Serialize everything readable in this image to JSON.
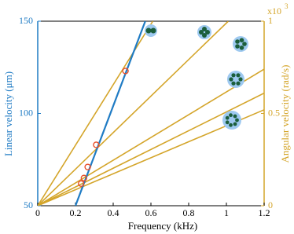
{
  "chart_data": {
    "type": "line",
    "x_label": "Frequency (kHz)",
    "y_label": "Linear velocity (μm)",
    "y2_label": "Angular velocity (rad/s)",
    "y2_multiplier": "x10",
    "y2_exponent": "3",
    "xlim": [
      0,
      1.2
    ],
    "xticks": [
      0,
      0.2,
      0.4,
      0.6,
      0.8,
      1,
      1.2
    ],
    "ylim": [
      50,
      150
    ],
    "yticks": [
      50,
      100,
      150
    ],
    "y2lim": [
      0,
      1
    ],
    "y2ticks": [
      0,
      0.5,
      1
    ],
    "y_color": "#1f7bc4",
    "y2_color": "#d4a52a",
    "series": [
      {
        "color": "#1f7bc4",
        "axis": "y",
        "x": [
          0.2,
          0.57
        ],
        "values": [
          50,
          150
        ]
      },
      {
        "color": "#d4a52a",
        "axis": "y2",
        "x": [
          0,
          0.61
        ],
        "values": [
          0,
          1
        ]
      },
      {
        "color": "#d4a52a",
        "axis": "y2",
        "x": [
          0,
          1.01
        ],
        "values": [
          0,
          1
        ]
      },
      {
        "color": "#d4a52a",
        "axis": "y2",
        "x": [
          0,
          1.2
        ],
        "values": [
          0,
          0.74
        ]
      },
      {
        "color": "#d4a52a",
        "axis": "y2",
        "x": [
          0,
          1.2
        ],
        "values": [
          0,
          0.61
        ]
      },
      {
        "color": "#d4a52a",
        "axis": "y2",
        "x": [
          0,
          1.2
        ],
        "values": [
          0,
          0.52
        ]
      }
    ],
    "points": {
      "color": "#e8502a",
      "axis": "y",
      "x": [
        0.465,
        0.31,
        0.265,
        0.245,
        0.23
      ],
      "values": [
        123,
        83,
        71,
        65,
        62
      ]
    }
  }
}
